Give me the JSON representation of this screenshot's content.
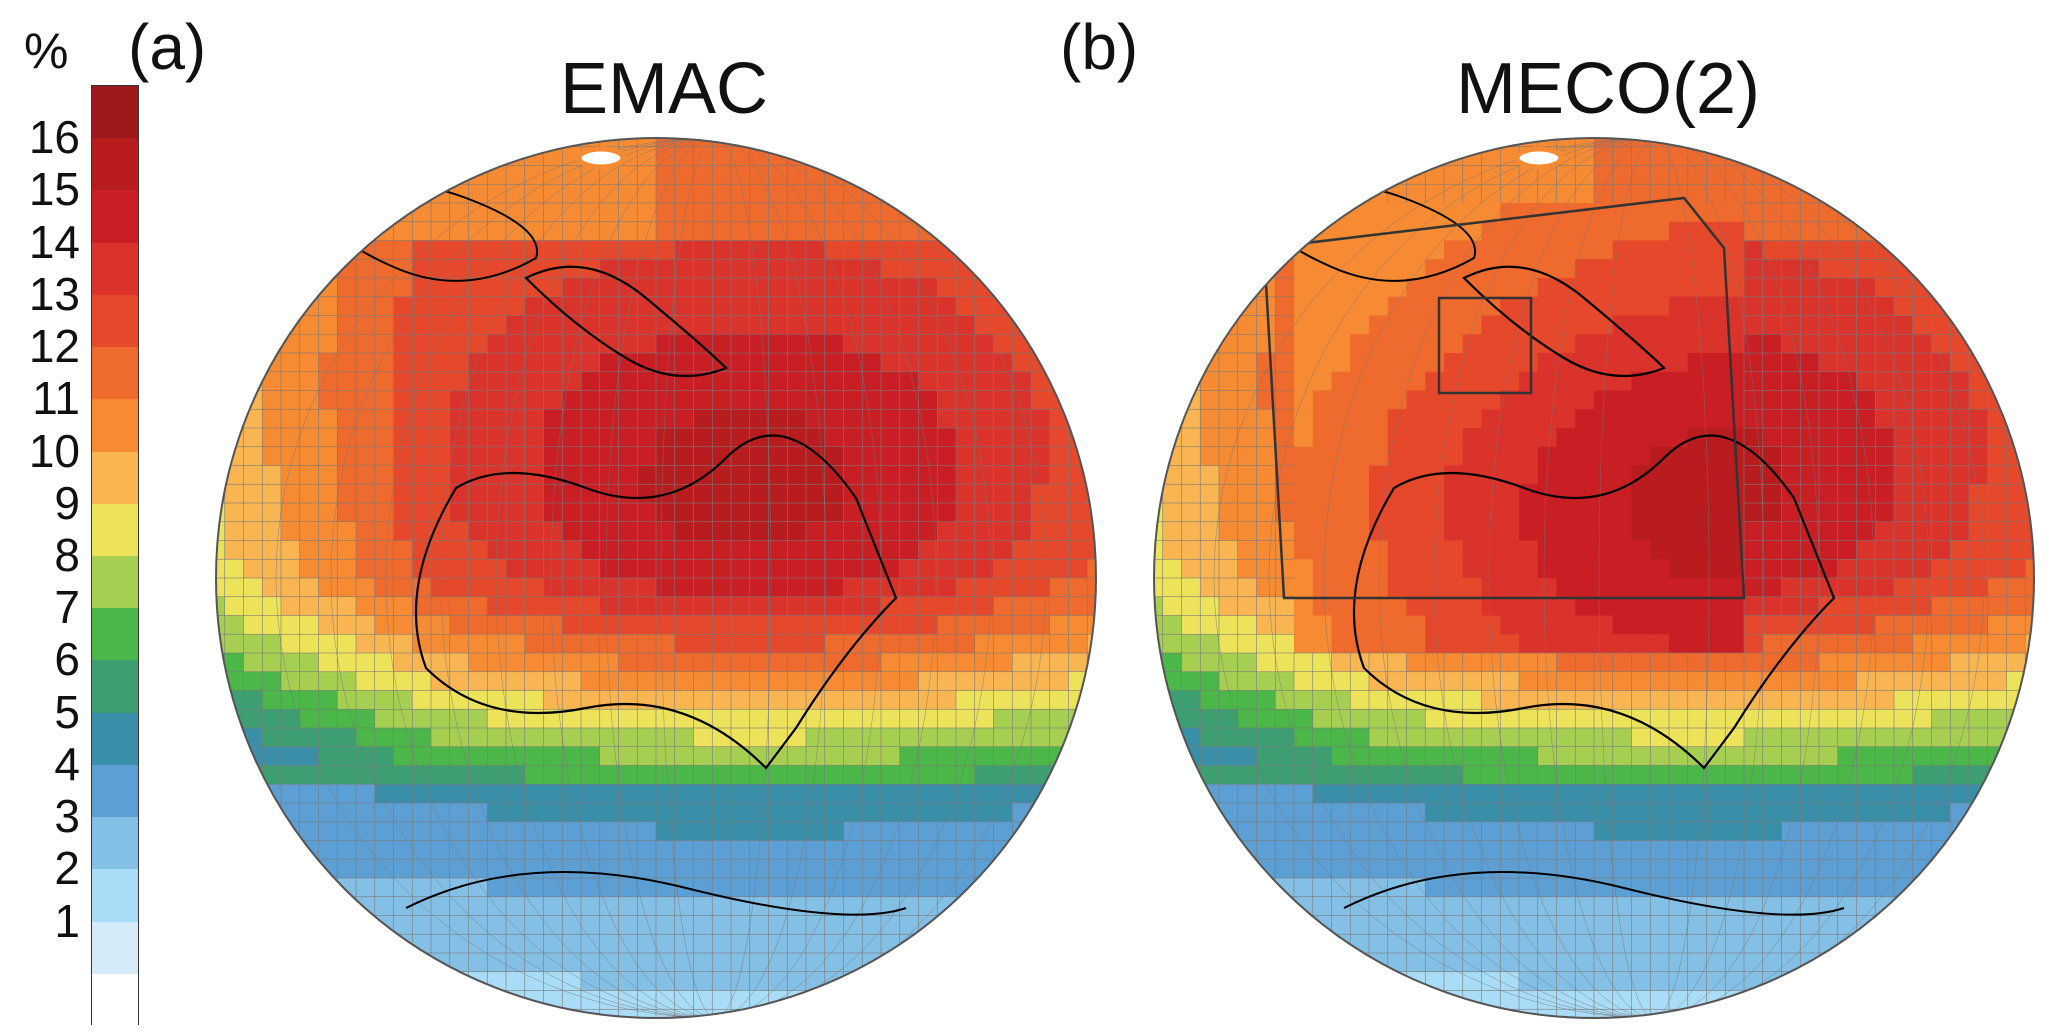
{
  "figure": {
    "colorbar": {
      "unit": "%",
      "ticks": [
        "16",
        "15",
        "14",
        "13",
        "12",
        "11",
        "10",
        "9",
        "8",
        "7",
        "6",
        "5",
        "4",
        "3",
        "2",
        "1"
      ],
      "colors": [
        "#9e1a1a",
        "#b81c1e",
        "#c81e24",
        "#d9332c",
        "#e5482b",
        "#ef6a2d",
        "#f68b34",
        "#f8b552",
        "#ede35a",
        "#a6cf52",
        "#4bb748",
        "#3d9e72",
        "#3a8fa8",
        "#5c9fd4",
        "#84bfe6",
        "#a9dcf6",
        "#d5ebfa",
        "#ffffff"
      ]
    },
    "panels": [
      {
        "letter": "(a)",
        "title": "EMAC"
      },
      {
        "letter": "(b)",
        "title": "MECO(2)"
      }
    ],
    "colors": {
      "grid_line": "#7a7a7a",
      "coast": "#000000",
      "no_data": "#c8c8c8"
    }
  }
}
